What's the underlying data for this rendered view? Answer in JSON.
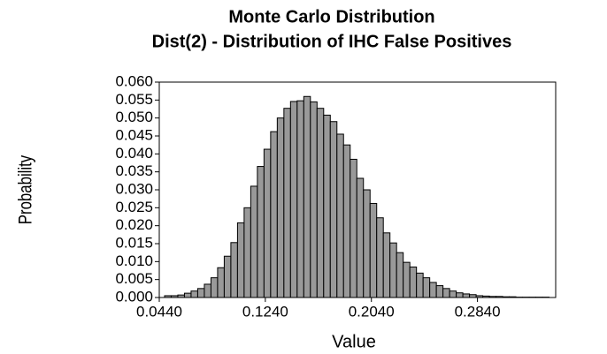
{
  "chart_data": {
    "type": "histogram",
    "title": "Monte Carlo Distribution",
    "subtitle": "Dist(2) - Distribution of IHC False Positives",
    "x_label": "Value",
    "y_label": "Probability",
    "color": "#999999",
    "bins": [
      0.048,
      0.053,
      0.058,
      0.063,
      0.068,
      0.073,
      0.078,
      0.083,
      0.088,
      0.093,
      0.098,
      0.103,
      0.108,
      0.113,
      0.118,
      0.123,
      0.128,
      0.133,
      0.138,
      0.143,
      0.148,
      0.153,
      0.158,
      0.163,
      0.168,
      0.173,
      0.178,
      0.183,
      0.188,
      0.193,
      0.198,
      0.203,
      0.208,
      0.213,
      0.218,
      0.223,
      0.228,
      0.233,
      0.238,
      0.243,
      0.248,
      0.253,
      0.258,
      0.263,
      0.268,
      0.273,
      0.278,
      0.283,
      0.288,
      0.293,
      0.298,
      0.303,
      0.308,
      0.313,
      0.318,
      0.323,
      0.328,
      0.333,
      0.338
    ],
    "values": [
      0.0005,
      0.0005,
      0.0007,
      0.0012,
      0.0018,
      0.0025,
      0.0037,
      0.0055,
      0.0083,
      0.0115,
      0.0153,
      0.0208,
      0.025,
      0.031,
      0.0365,
      0.0413,
      0.0462,
      0.05,
      0.0527,
      0.0546,
      0.0548,
      0.056,
      0.0545,
      0.0527,
      0.0508,
      0.049,
      0.0455,
      0.0425,
      0.0385,
      0.0332,
      0.03,
      0.0262,
      0.0222,
      0.018,
      0.0152,
      0.0125,
      0.0098,
      0.0085,
      0.0068,
      0.0055,
      0.0042,
      0.0033,
      0.0025,
      0.0018,
      0.0013,
      0.001,
      0.0008,
      0.0005,
      0.0004,
      0.0003,
      0.0003,
      0.0002,
      0.0002,
      0.0001,
      0.0001,
      0.0001,
      0.0001,
      0.0001
    ],
    "xlim": [
      0.044,
      0.343
    ],
    "ylim": [
      0,
      0.06
    ],
    "xticks": [
      {
        "value": 0.044,
        "label": "0.0440"
      },
      {
        "value": 0.124,
        "label": "0.1240"
      },
      {
        "value": 0.204,
        "label": "0.2040"
      },
      {
        "value": 0.284,
        "label": "0.2840"
      }
    ],
    "yticks": [
      {
        "value": 0,
        "label": "0.000"
      },
      {
        "value": 0.005,
        "label": "0.005"
      },
      {
        "value": 0.01,
        "label": "0.010"
      },
      {
        "value": 0.015,
        "label": "0.015"
      },
      {
        "value": 0.02,
        "label": "0.020"
      },
      {
        "value": 0.025,
        "label": "0.025"
      },
      {
        "value": 0.03,
        "label": "0.030"
      },
      {
        "value": 0.035,
        "label": "0.035"
      },
      {
        "value": 0.04,
        "label": "0.040"
      },
      {
        "value": 0.045,
        "label": "0.045"
      },
      {
        "value": 0.05,
        "label": "0.050"
      },
      {
        "value": 0.055,
        "label": "0.055"
      },
      {
        "value": 0.06,
        "label": "0.060"
      }
    ]
  }
}
